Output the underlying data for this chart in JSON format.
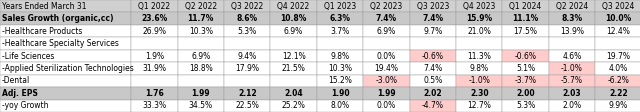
{
  "header_row": [
    "Years Ended March 31",
    "Q1 2022",
    "Q2 2022",
    "Q3 2022",
    "Q4 2022",
    "Q1 2023",
    "Q2 2023",
    "Q3 2023",
    "Q4 2023",
    "Q1 2024",
    "Q2 2024",
    "Q3 2024"
  ],
  "rows": [
    {
      "label": "Sales Growth (organic,cc)",
      "bold": true,
      "values": [
        "23.6%",
        "11.7%",
        "8.6%",
        "10.8%",
        "6.3%",
        "7.4%",
        "7.4%",
        "15.9%",
        "11.1%",
        "8.3%",
        "10.0%"
      ],
      "highlights": []
    },
    {
      "label": "-Healthcare Products",
      "bold": false,
      "values": [
        "26.9%",
        "10.3%",
        "5.3%",
        "6.9%",
        "3.7%",
        "6.9%",
        "9.7%",
        "21.0%",
        "17.5%",
        "13.9%",
        "12.4%"
      ],
      "highlights": []
    },
    {
      "label": "-Healthcare Specialty Services",
      "bold": false,
      "values": [
        "",
        "",
        "",
        "",
        "",
        "",
        "",
        "",
        "",
        "",
        ""
      ],
      "highlights": []
    },
    {
      "label": "-Life Sciences",
      "bold": false,
      "values": [
        "1.9%",
        "6.9%",
        "9.4%",
        "12.1%",
        "9.8%",
        "0.0%",
        "-0.6%",
        "11.3%",
        "-0.6%",
        "4.6%",
        "19.7%"
      ],
      "highlights": [
        6,
        8
      ]
    },
    {
      "label": "-Applied Sterilization Technologies",
      "bold": false,
      "values": [
        "31.9%",
        "18.8%",
        "17.9%",
        "21.5%",
        "10.3%",
        "19.4%",
        "7.4%",
        "9.8%",
        "5.1%",
        "-1.0%",
        "4.0%"
      ],
      "highlights": [
        9
      ]
    },
    {
      "label": "-Dental",
      "bold": false,
      "values": [
        "",
        "",
        "",
        "",
        "15.2%",
        "-3.0%",
        "0.5%",
        "-1.0%",
        "-3.7%",
        "-5.7%",
        "-6.2%"
      ],
      "highlights": [
        5,
        7,
        8,
        9,
        10
      ]
    },
    {
      "label": "Adj. EPS",
      "bold": true,
      "values": [
        "1.76",
        "1.99",
        "2.12",
        "2.04",
        "1.90",
        "1.99",
        "2.02",
        "2.30",
        "2.00",
        "2.03",
        "2.22"
      ],
      "highlights": []
    },
    {
      "label": "-yoy Growth",
      "bold": false,
      "values": [
        "33.3%",
        "34.5%",
        "22.5%",
        "25.2%",
        "8.0%",
        "0.0%",
        "-4.7%",
        "12.7%",
        "5.3%",
        "2.0%",
        "9.9%"
      ],
      "highlights": [
        6
      ]
    }
  ],
  "highlight_color": "#ffcccc",
  "header_bg": "#d0d0d0",
  "bold_row_bg": "#c8c8c8",
  "normal_bg": "#ffffff",
  "alt_bg": "#f0f0f0",
  "border_color": "#999999",
  "text_color": "#000000",
  "font_size": 5.5,
  "header_font_size": 5.5
}
